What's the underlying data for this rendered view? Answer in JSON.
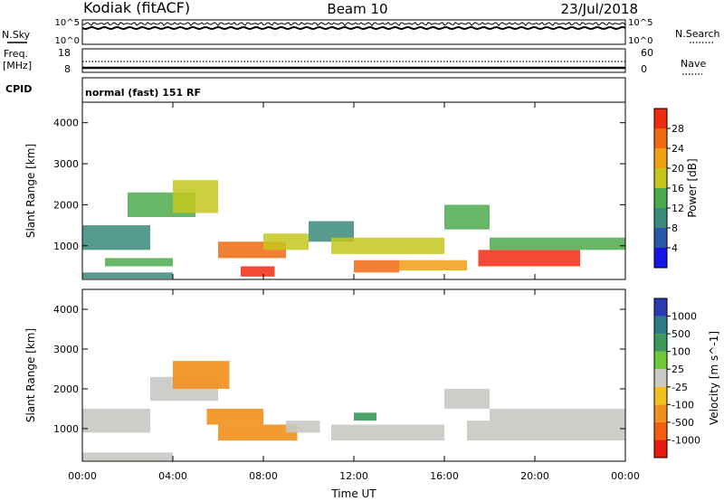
{
  "header": {
    "station": "Kodiak (fitACF)",
    "beam": "Beam 10",
    "date": "23/Jul/2018"
  },
  "side_labels": {
    "nsky": "N.Sky",
    "nsearch": "N.Search",
    "freq_line1": "Freq.",
    "freq_line2": "[MHz]",
    "nave": "Nave",
    "cpid": "CPID",
    "cpid_value": "normal (fast) 151 RF"
  },
  "noise_panel": {
    "left_ticks": [
      "10^5",
      "10^0"
    ],
    "right_ticks": [
      "10^5",
      "10^0"
    ]
  },
  "freq_panel": {
    "left_ticks": [
      "18",
      "8"
    ],
    "right_ticks": [
      "60",
      "0"
    ]
  },
  "axes": {
    "ylabel": "Slant Range [km]",
    "xlabel": "Time UT",
    "yticks": [
      "1000",
      "2000",
      "3000",
      "4000"
    ],
    "xticks": [
      "00:00",
      "04:00",
      "08:00",
      "12:00",
      "16:00",
      "20:00",
      "00:00"
    ]
  },
  "power_colorbar": {
    "label": "Power [dB]",
    "ticks": [
      "4",
      "8",
      "12",
      "16",
      "20",
      "24",
      "28"
    ],
    "colors": [
      "#1515e8",
      "#2a56a8",
      "#3a8a7a",
      "#4caa4c",
      "#c4c81c",
      "#f0a010",
      "#f06a10",
      "#f02a10"
    ]
  },
  "velocity_colorbar": {
    "label": "Velocity [m s^-1]",
    "ticks": [
      "1000",
      "500",
      "100",
      "25",
      "-25",
      "-100",
      "-500",
      "-1000"
    ],
    "colors": [
      "#2a3ab0",
      "#2e7a8a",
      "#3a9a5a",
      "#6ec83a",
      "#c8c8c4",
      "#f0c020",
      "#f0901a",
      "#f06010",
      "#e81a10"
    ]
  },
  "chart_data": {
    "type": "heatmap",
    "title": "Kodiak (fitACF) Beam 10 23/Jul/2018",
    "xlabel": "Time UT",
    "ylabel": "Slant Range [km]",
    "xlim": [
      0,
      24
    ],
    "ylim": [
      180,
      4500
    ],
    "power_panel": {
      "colorbar": "Power [dB]",
      "clim": [
        0,
        30
      ],
      "regions": [
        {
          "t": [
            0,
            4
          ],
          "r": [
            200,
            350
          ],
          "dB": 10
        },
        {
          "t": [
            0,
            3
          ],
          "r": [
            900,
            1500
          ],
          "dB": 8
        },
        {
          "t": [
            1,
            4
          ],
          "r": [
            500,
            700
          ],
          "dB": 14
        },
        {
          "t": [
            2,
            5
          ],
          "r": [
            1700,
            2300
          ],
          "dB": 12
        },
        {
          "t": [
            4,
            6
          ],
          "r": [
            1800,
            2600
          ],
          "dB": 16
        },
        {
          "t": [
            6,
            9
          ],
          "r": [
            700,
            1100
          ],
          "dB": 26
        },
        {
          "t": [
            7,
            8.5
          ],
          "r": [
            250,
            500
          ],
          "dB": 28
        },
        {
          "t": [
            8,
            10
          ],
          "r": [
            900,
            1300
          ],
          "dB": 18
        },
        {
          "t": [
            10,
            12
          ],
          "r": [
            1100,
            1600
          ],
          "dB": 8
        },
        {
          "t": [
            11,
            16
          ],
          "r": [
            800,
            1200
          ],
          "dB": 18
        },
        {
          "t": [
            12,
            14
          ],
          "r": [
            350,
            650
          ],
          "dB": 26
        },
        {
          "t": [
            14,
            17
          ],
          "r": [
            400,
            650
          ],
          "dB": 22
        },
        {
          "t": [
            16,
            18
          ],
          "r": [
            1400,
            2000
          ],
          "dB": 14
        },
        {
          "t": [
            17.5,
            22
          ],
          "r": [
            500,
            900
          ],
          "dB": 27
        },
        {
          "t": [
            18,
            24
          ],
          "r": [
            900,
            1200
          ],
          "dB": 14
        }
      ]
    },
    "velocity_panel": {
      "colorbar": "Velocity [m s^-1]",
      "clim": [
        -1000,
        1000
      ],
      "regions": [
        {
          "t": [
            0,
            4
          ],
          "r": [
            200,
            400
          ],
          "v": 0
        },
        {
          "t": [
            0,
            3
          ],
          "r": [
            900,
            1500
          ],
          "v": 0
        },
        {
          "t": [
            3,
            6
          ],
          "r": [
            1700,
            2300
          ],
          "v": 0
        },
        {
          "t": [
            4,
            6.5
          ],
          "r": [
            2000,
            2700
          ],
          "v": -300
        },
        {
          "t": [
            5.5,
            8
          ],
          "r": [
            1100,
            1500
          ],
          "v": -400
        },
        {
          "t": [
            6,
            9.5
          ],
          "r": [
            700,
            1100
          ],
          "v": -200
        },
        {
          "t": [
            9,
            10.5
          ],
          "r": [
            900,
            1200
          ],
          "v": 0
        },
        {
          "t": [
            12,
            13
          ],
          "r": [
            1200,
            1400
          ],
          "v": 200
        },
        {
          "t": [
            11,
            16
          ],
          "r": [
            700,
            1100
          ],
          "v": 0
        },
        {
          "t": [
            16,
            18
          ],
          "r": [
            1500,
            2000
          ],
          "v": 0
        },
        {
          "t": [
            17,
            24
          ],
          "r": [
            700,
            1200
          ],
          "v": 0
        },
        {
          "t": [
            18,
            24
          ],
          "r": [
            1200,
            1500
          ],
          "v": 0
        }
      ]
    }
  }
}
